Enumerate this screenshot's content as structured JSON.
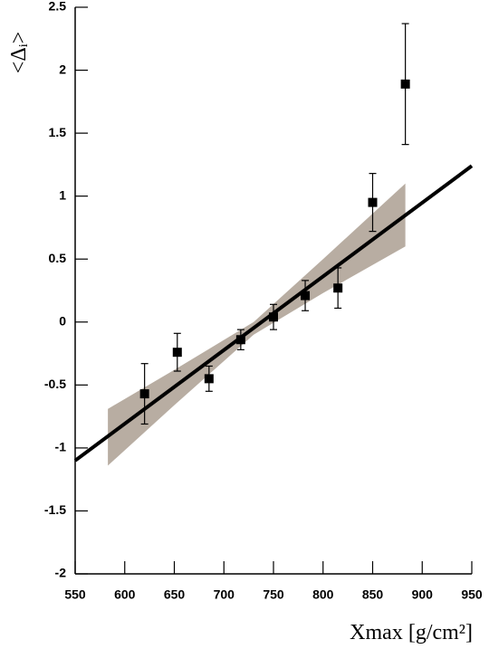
{
  "chart_data": {
    "type": "scatter",
    "x_label": "Xmax [g/cm²]",
    "y_label": "<Δᵢ>",
    "xlim": [
      550,
      950
    ],
    "ylim": [
      -2,
      2.5
    ],
    "xticks": [
      550,
      600,
      650,
      700,
      750,
      800,
      850,
      900,
      950
    ],
    "yticks": [
      -2,
      -1.5,
      -1,
      -0.5,
      0,
      0.5,
      1,
      1.5,
      2,
      2.5
    ],
    "points": {
      "color": "#000000",
      "x": [
        620,
        653,
        685,
        717,
        750,
        782,
        815,
        850,
        883
      ],
      "y": [
        -0.57,
        -0.24,
        -0.45,
        -0.14,
        0.04,
        0.21,
        0.27,
        0.95,
        1.89
      ],
      "yerr": [
        0.24,
        0.15,
        0.1,
        0.08,
        0.1,
        0.12,
        0.16,
        0.23,
        0.48
      ]
    },
    "fit": {
      "color": "#000000",
      "x": [
        550,
        950
      ],
      "y": [
        -1.1,
        1.24
      ]
    },
    "band": {
      "color": "#b8ada2",
      "x": [
        583,
        650,
        730,
        800,
        883
      ],
      "upper": [
        -0.69,
        -0.38,
        0.0,
        0.5,
        1.1
      ],
      "lower": [
        -1.14,
        -0.66,
        -0.1,
        0.23,
        0.6
      ]
    }
  }
}
